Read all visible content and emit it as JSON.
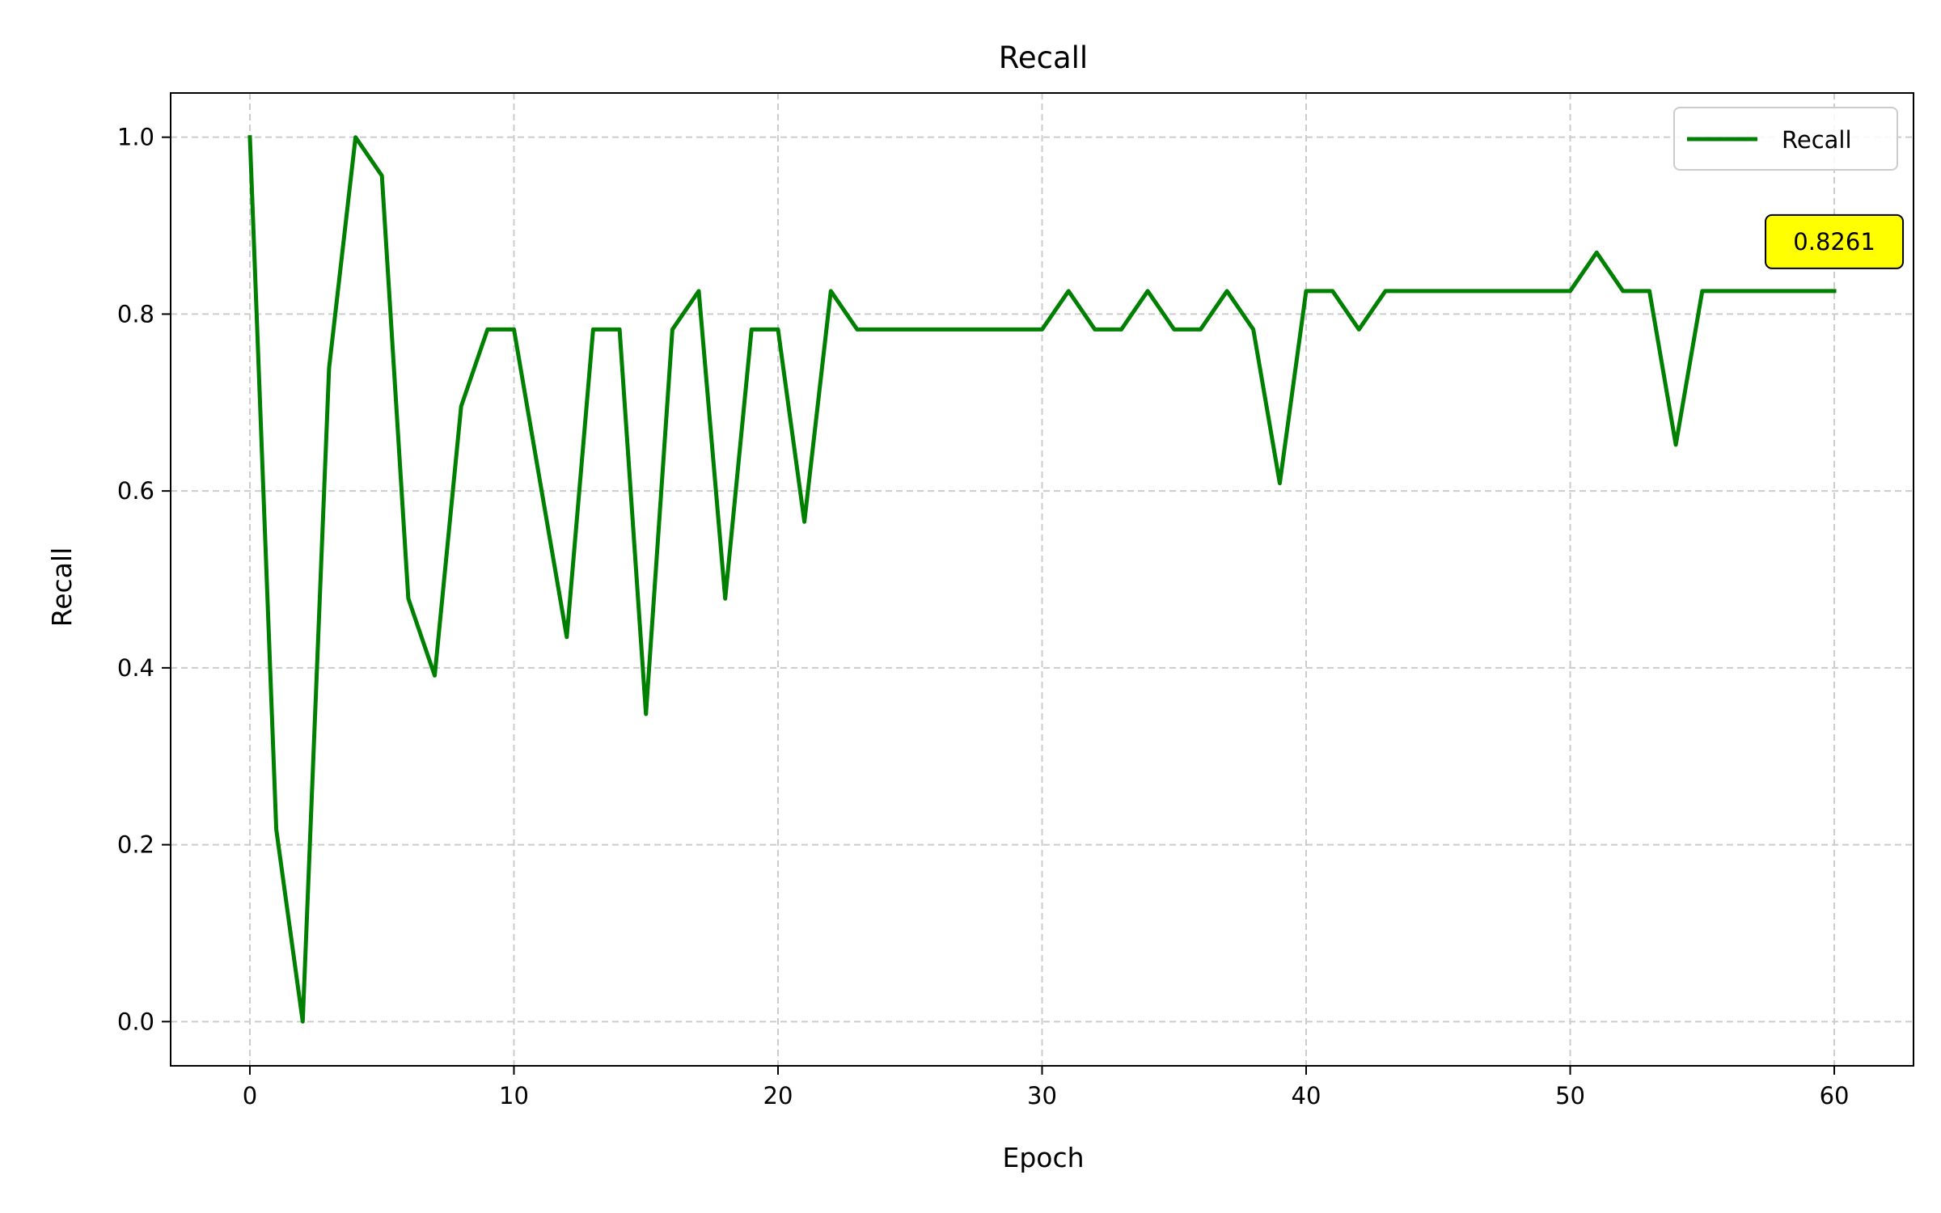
{
  "chart_data": {
    "type": "line",
    "title": "Recall",
    "xlabel": "Epoch",
    "ylabel": "Recall",
    "xlim": [
      -3,
      63
    ],
    "ylim": [
      -0.05,
      1.05
    ],
    "xticks": [
      0,
      10,
      20,
      30,
      40,
      50,
      60
    ],
    "xtick_labels": [
      "0",
      "10",
      "20",
      "30",
      "40",
      "50",
      "60"
    ],
    "yticks": [
      0.0,
      0.2,
      0.4,
      0.6,
      0.8,
      1.0
    ],
    "ytick_labels": [
      "0.0",
      "0.2",
      "0.4",
      "0.6",
      "0.8",
      "1.0"
    ],
    "grid": true,
    "legend_position": "top-right",
    "series": [
      {
        "name": "Recall",
        "color": "#008000",
        "x": [
          0,
          1,
          2,
          3,
          4,
          5,
          6,
          7,
          8,
          9,
          10,
          11,
          12,
          13,
          14,
          15,
          16,
          17,
          18,
          19,
          20,
          21,
          22,
          23,
          24,
          25,
          26,
          27,
          28,
          29,
          30,
          31,
          32,
          33,
          34,
          35,
          36,
          37,
          38,
          39,
          40,
          41,
          42,
          43,
          44,
          45,
          46,
          47,
          48,
          49,
          50,
          51,
          52,
          53,
          54,
          55,
          56,
          57,
          58,
          59,
          60
        ],
        "values": [
          1.0,
          0.2174,
          0.0,
          0.7391,
          1.0,
          0.9565,
          0.4783,
          0.3913,
          0.6957,
          0.7826,
          0.7826,
          0.6087,
          0.4348,
          0.7826,
          0.7826,
          0.3478,
          0.7826,
          0.8261,
          0.4783,
          0.7826,
          0.7826,
          0.5652,
          0.8261,
          0.7826,
          0.7826,
          0.7826,
          0.7826,
          0.7826,
          0.7826,
          0.7826,
          0.7826,
          0.8261,
          0.7826,
          0.7826,
          0.8261,
          0.7826,
          0.7826,
          0.8261,
          0.7826,
          0.6087,
          0.8261,
          0.8261,
          0.7826,
          0.8261,
          0.8261,
          0.8261,
          0.8261,
          0.8261,
          0.8261,
          0.8261,
          0.8261,
          0.8696,
          0.8261,
          0.8261,
          0.6522,
          0.8261,
          0.8261,
          0.8261,
          0.8261,
          0.8261,
          0.8261
        ]
      }
    ],
    "annotation": {
      "text": "0.8261",
      "x": 60,
      "y": 0.8261,
      "background": "#ffff00"
    }
  }
}
